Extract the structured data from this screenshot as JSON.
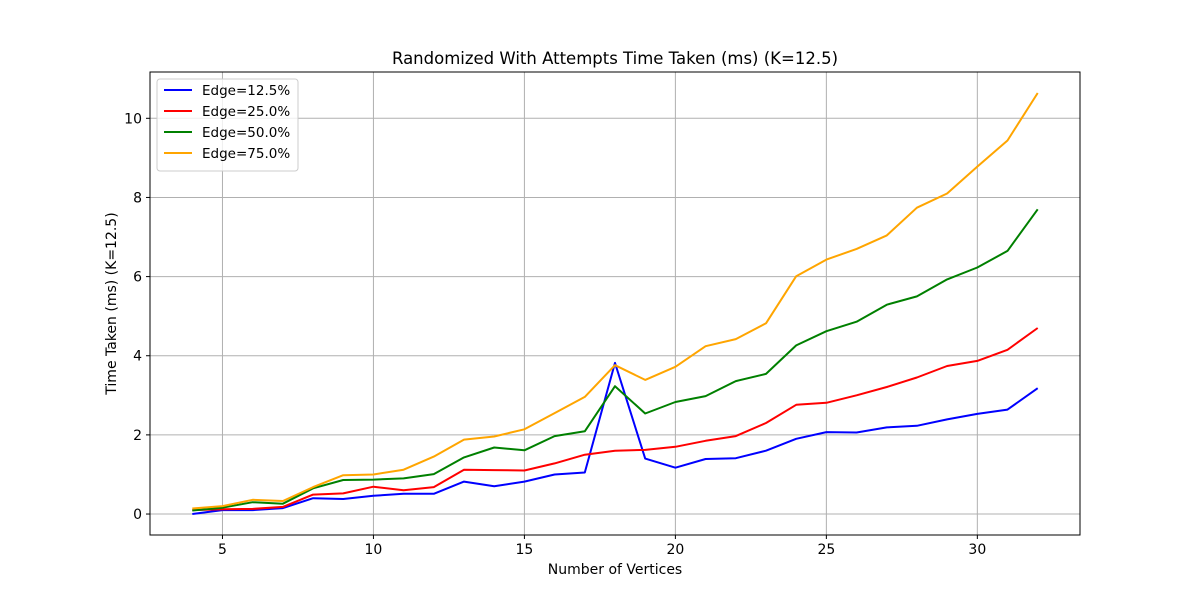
{
  "chart_data": {
    "type": "line",
    "title": "Randomized With Attempts Time Taken (ms) (K=12.5)",
    "xlabel": "Number of Vertices",
    "ylabel": "Time Taken (ms) (K=12.5)",
    "xlim": [
      2.6,
      33.4
    ],
    "ylim": [
      -0.53,
      11.17
    ],
    "xticks": [
      5,
      10,
      15,
      20,
      25,
      30
    ],
    "yticks": [
      0,
      2,
      4,
      6,
      8,
      10
    ],
    "grid": true,
    "legend_position": "upper-left",
    "x": [
      4,
      5,
      6,
      7,
      8,
      9,
      10,
      11,
      12,
      13,
      14,
      15,
      16,
      17,
      18,
      19,
      20,
      21,
      22,
      23,
      24,
      25,
      26,
      27,
      28,
      29,
      30,
      31,
      32
    ],
    "series": [
      {
        "name": "Edge=12.5%",
        "color": "#0000ff",
        "values": [
          0.0,
          0.1,
          0.1,
          0.15,
          0.4,
          0.38,
          0.46,
          0.51,
          0.51,
          0.82,
          0.7,
          0.82,
          1.0,
          1.05,
          3.82,
          1.4,
          1.17,
          1.39,
          1.41,
          1.6,
          1.9,
          2.07,
          2.06,
          2.19,
          2.23,
          2.39,
          2.53,
          2.64,
          3.18
        ]
      },
      {
        "name": "Edge=25.0%",
        "color": "#ff0000",
        "values": [
          0.1,
          0.12,
          0.13,
          0.18,
          0.49,
          0.52,
          0.69,
          0.6,
          0.68,
          1.12,
          1.11,
          1.1,
          1.28,
          1.5,
          1.6,
          1.62,
          1.7,
          1.85,
          1.97,
          2.3,
          2.76,
          2.81,
          3.0,
          3.21,
          3.45,
          3.74,
          3.87,
          4.15,
          4.7
        ]
      },
      {
        "name": "Edge=50.0%",
        "color": "#008000",
        "values": [
          0.09,
          0.16,
          0.3,
          0.26,
          0.65,
          0.86,
          0.87,
          0.9,
          1.01,
          1.43,
          1.68,
          1.61,
          1.97,
          2.09,
          3.23,
          2.54,
          2.83,
          2.98,
          3.36,
          3.54,
          4.26,
          4.62,
          4.86,
          5.29,
          5.5,
          5.93,
          6.23,
          6.65,
          7.7
        ]
      },
      {
        "name": "Edge=75.0%",
        "color": "#ffa500",
        "values": [
          0.14,
          0.2,
          0.36,
          0.33,
          0.68,
          0.98,
          1.0,
          1.12,
          1.45,
          1.88,
          1.96,
          2.14,
          2.55,
          2.96,
          3.76,
          3.39,
          3.72,
          4.24,
          4.42,
          4.82,
          6.01,
          6.43,
          6.7,
          7.04,
          7.74,
          8.1,
          8.78,
          9.44,
          10.64
        ]
      }
    ]
  }
}
